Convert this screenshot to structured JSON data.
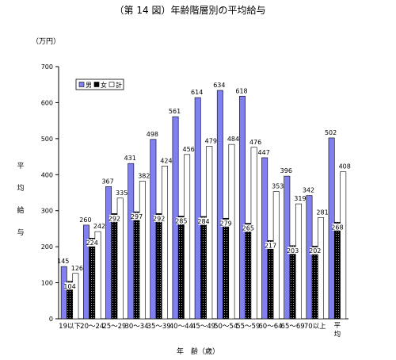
{
  "chart_data": {
    "type": "bar",
    "title": "（第 14 図）年齢階層別の平均給与",
    "unit": "（万円）",
    "ylabel": "平均給与",
    "xlabel": "年　齢（歳）",
    "ylim": [
      0,
      700
    ],
    "yticks": [
      0,
      100,
      200,
      300,
      400,
      500,
      600,
      700
    ],
    "grid": false,
    "legend_position": "top-left",
    "categories": [
      "19以下",
      "20～24",
      "25～29",
      "30～34",
      "35～39",
      "40～44",
      "45～49",
      "50～54",
      "55～59",
      "60～64",
      "65～69",
      "70以上",
      "平均"
    ],
    "series": [
      {
        "name": "男",
        "values": [
          145,
          260,
          367,
          431,
          498,
          561,
          614,
          634,
          618,
          447,
          396,
          342,
          502
        ],
        "color": "#8080f0"
      },
      {
        "name": "女",
        "values": [
          104,
          224,
          292,
          297,
          292,
          285,
          284,
          279,
          265,
          217,
          203,
          202,
          268
        ],
        "color": "#000000"
      },
      {
        "name": "計",
        "values": [
          126,
          242,
          335,
          382,
          424,
          456,
          479,
          484,
          476,
          353,
          319,
          281,
          408
        ],
        "color": "#ffffff"
      }
    ]
  }
}
